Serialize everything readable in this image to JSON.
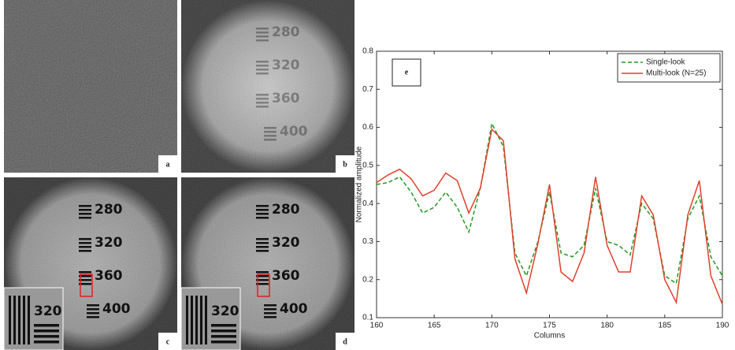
{
  "panels": [
    "a",
    "b",
    "c",
    "d"
  ],
  "target_labels": [
    "280",
    "320",
    "360",
    "400"
  ],
  "chart_data": {
    "type": "line",
    "annotation": "e",
    "xlabel": "Columns",
    "ylabel": "Normalized amplitude",
    "x": [
      160,
      161,
      162,
      163,
      164,
      165,
      166,
      167,
      168,
      169,
      170,
      171,
      172,
      173,
      174,
      175,
      176,
      177,
      178,
      179,
      180,
      181,
      182,
      183,
      184,
      185,
      186,
      187,
      188,
      189,
      190
    ],
    "xlim": [
      160,
      190
    ],
    "xticks": [
      160,
      165,
      170,
      175,
      180,
      185,
      190
    ],
    "ylim": [
      0.1,
      0.8
    ],
    "yticks": [
      0.1,
      0.2,
      0.3,
      0.4,
      0.5,
      0.6,
      0.7,
      0.8
    ],
    "legend": "upper right",
    "series": [
      {
        "name": "Single-look",
        "color": "#1f9a1f",
        "style": "dashed",
        "values": [
          0.45,
          0.455,
          0.47,
          0.43,
          0.375,
          0.39,
          0.43,
          0.39,
          0.325,
          0.44,
          0.61,
          0.55,
          0.27,
          0.21,
          0.3,
          0.43,
          0.27,
          0.26,
          0.29,
          0.44,
          0.3,
          0.29,
          0.265,
          0.4,
          0.36,
          0.21,
          0.19,
          0.36,
          0.42,
          0.26,
          0.21
        ]
      },
      {
        "name": "Multi-look (N=25)",
        "color": "#e0402a",
        "style": "solid",
        "values": [
          0.455,
          0.475,
          0.49,
          0.465,
          0.42,
          0.435,
          0.48,
          0.46,
          0.375,
          0.44,
          0.595,
          0.565,
          0.255,
          0.165,
          0.295,
          0.45,
          0.22,
          0.195,
          0.27,
          0.47,
          0.29,
          0.22,
          0.22,
          0.42,
          0.37,
          0.2,
          0.14,
          0.37,
          0.46,
          0.21,
          0.135
        ]
      }
    ]
  }
}
